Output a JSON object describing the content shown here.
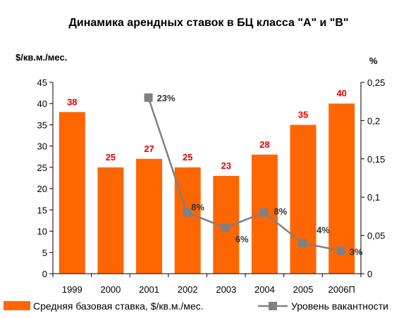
{
  "chart_data": {
    "type": "bar",
    "title": "Динамика арендных ставок в  БЦ класса \"А\" и \"В\"",
    "categories": [
      "1999",
      "2000",
      "2001",
      "2002",
      "2003",
      "2004",
      "2005",
      "2006П"
    ],
    "y_left_unit": "$/кв.м./мес.",
    "y_right_unit": "%",
    "y_left_ticks": [
      "0",
      "5",
      "10",
      "15",
      "20",
      "25",
      "30",
      "35",
      "40",
      "45"
    ],
    "y_right_ticks": [
      "0",
      "0,05",
      "0,1",
      "0,15",
      "0,2",
      "0,25"
    ],
    "ylim_left": [
      0,
      45
    ],
    "ylim_right": [
      0,
      0.25
    ],
    "grid": false,
    "legend_position": "bottom",
    "series": [
      {
        "name": "Средняя базовая ставка, $/кв.м./мес.",
        "type": "bar",
        "axis": "left",
        "color": "#FF6600",
        "label_color": "#E00000",
        "values": [
          38,
          25,
          27,
          25,
          23,
          28,
          35,
          40
        ],
        "labels": [
          "38",
          "25",
          "27",
          "25",
          "23",
          "28",
          "35",
          "40"
        ]
      },
      {
        "name": "Уровень вакантности",
        "type": "line",
        "axis": "right",
        "color": "#808080",
        "values": [
          null,
          null,
          0.23,
          0.08,
          0.06,
          0.08,
          0.04,
          0.03
        ],
        "labels": [
          null,
          null,
          "23%",
          "8%",
          "6%",
          "8%",
          "4%",
          "3%"
        ]
      }
    ]
  }
}
